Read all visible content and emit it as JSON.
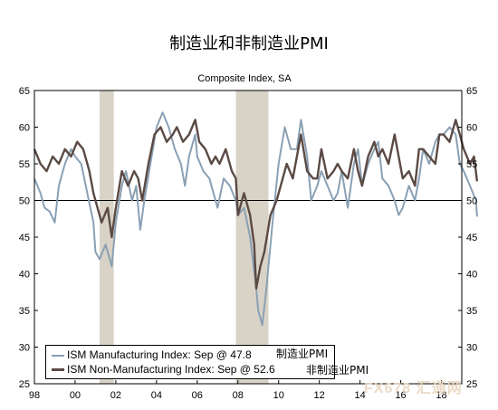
{
  "title": "制造业和非制造业PMI",
  "chart_data": {
    "type": "line",
    "subtitle": "Composite Index, SA",
    "ylim": [
      25,
      65
    ],
    "yticks": [
      25,
      30,
      35,
      40,
      45,
      50,
      55,
      60,
      65
    ],
    "xlim": [
      1998.0,
      2019.0
    ],
    "xticks": [
      {
        "x": 1998,
        "label": "98"
      },
      {
        "x": 2000,
        "label": "00"
      },
      {
        "x": 2002,
        "label": "02"
      },
      {
        "x": 2004,
        "label": "04"
      },
      {
        "x": 2006,
        "label": "06"
      },
      {
        "x": 2008,
        "label": "08"
      },
      {
        "x": 2010,
        "label": "10"
      },
      {
        "x": 2012,
        "label": "12"
      },
      {
        "x": 2014,
        "label": "14"
      },
      {
        "x": 2016,
        "label": "16"
      },
      {
        "x": 2018,
        "label": "18"
      }
    ],
    "reference_line": 50,
    "recessions": [
      [
        2001.2,
        2001.9
      ],
      [
        2007.9,
        2009.5
      ]
    ],
    "series": [
      {
        "name": "ISM Manufacturing Index: Sep @ 47.8",
        "name_extra": "制造业PMI",
        "color": "#8aa0b4",
        "points": [
          [
            1998.0,
            53
          ],
          [
            1998.3,
            51
          ],
          [
            1998.5,
            49
          ],
          [
            1998.75,
            48.5
          ],
          [
            1999.0,
            47
          ],
          [
            1999.2,
            52
          ],
          [
            1999.5,
            55
          ],
          [
            1999.8,
            57
          ],
          [
            2000.0,
            56
          ],
          [
            2000.3,
            55
          ],
          [
            2000.6,
            51
          ],
          [
            2000.9,
            47
          ],
          [
            2001.0,
            43
          ],
          [
            2001.2,
            42
          ],
          [
            2001.5,
            44
          ],
          [
            2001.8,
            41
          ],
          [
            2002.0,
            47
          ],
          [
            2002.3,
            52
          ],
          [
            2002.5,
            54
          ],
          [
            2002.8,
            50
          ],
          [
            2003.0,
            52
          ],
          [
            2003.2,
            46
          ],
          [
            2003.4,
            50
          ],
          [
            2003.7,
            55
          ],
          [
            2004.0,
            60
          ],
          [
            2004.3,
            62
          ],
          [
            2004.6,
            60
          ],
          [
            2004.9,
            57
          ],
          [
            2005.2,
            55
          ],
          [
            2005.4,
            52
          ],
          [
            2005.6,
            56
          ],
          [
            2005.9,
            59
          ],
          [
            2006.0,
            56
          ],
          [
            2006.3,
            54
          ],
          [
            2006.6,
            53
          ],
          [
            2006.9,
            50
          ],
          [
            2007.0,
            49
          ],
          [
            2007.3,
            53
          ],
          [
            2007.6,
            52
          ],
          [
            2007.9,
            50
          ],
          [
            2008.0,
            48
          ],
          [
            2008.3,
            49
          ],
          [
            2008.6,
            45
          ],
          [
            2008.9,
            38
          ],
          [
            2009.0,
            35
          ],
          [
            2009.2,
            33
          ],
          [
            2009.4,
            38
          ],
          [
            2009.7,
            47
          ],
          [
            2010.0,
            55
          ],
          [
            2010.3,
            60
          ],
          [
            2010.6,
            57
          ],
          [
            2010.9,
            57
          ],
          [
            2011.1,
            61
          ],
          [
            2011.4,
            56
          ],
          [
            2011.6,
            50
          ],
          [
            2011.9,
            52
          ],
          [
            2012.1,
            54
          ],
          [
            2012.4,
            52
          ],
          [
            2012.7,
            50
          ],
          [
            2012.9,
            51
          ],
          [
            2013.1,
            54
          ],
          [
            2013.4,
            49
          ],
          [
            2013.7,
            55
          ],
          [
            2013.9,
            57
          ],
          [
            2014.1,
            52
          ],
          [
            2014.4,
            55
          ],
          [
            2014.7,
            57
          ],
          [
            2014.9,
            58
          ],
          [
            2015.1,
            53
          ],
          [
            2015.4,
            52
          ],
          [
            2015.7,
            50
          ],
          [
            2015.9,
            48
          ],
          [
            2016.1,
            49
          ],
          [
            2016.4,
            52
          ],
          [
            2016.7,
            50
          ],
          [
            2016.9,
            53
          ],
          [
            2017.1,
            57
          ],
          [
            2017.4,
            55
          ],
          [
            2017.7,
            58
          ],
          [
            2017.9,
            59
          ],
          [
            2018.1,
            59
          ],
          [
            2018.4,
            60
          ],
          [
            2018.7,
            59
          ],
          [
            2018.9,
            55
          ],
          [
            2019.1,
            54
          ],
          [
            2019.4,
            52
          ],
          [
            2019.7,
            50
          ],
          [
            2019.75,
            47.8
          ]
        ]
      },
      {
        "name": "ISM Non-Manufacturing Index: Sep @ 52.6",
        "name_extra": "非制造业PMI",
        "color": "#5b4a44",
        "points": [
          [
            1998.0,
            57
          ],
          [
            1998.3,
            55
          ],
          [
            1998.6,
            54
          ],
          [
            1998.9,
            56
          ],
          [
            1999.2,
            55
          ],
          [
            1999.5,
            57
          ],
          [
            1999.8,
            56
          ],
          [
            2000.1,
            58
          ],
          [
            2000.4,
            57
          ],
          [
            2000.7,
            54
          ],
          [
            2000.9,
            51
          ],
          [
            2001.1,
            49
          ],
          [
            2001.3,
            47
          ],
          [
            2001.6,
            49
          ],
          [
            2001.8,
            45
          ],
          [
            2002.0,
            49
          ],
          [
            2002.3,
            54
          ],
          [
            2002.6,
            52
          ],
          [
            2002.9,
            54
          ],
          [
            2003.1,
            53
          ],
          [
            2003.3,
            50
          ],
          [
            2003.6,
            55
          ],
          [
            2003.9,
            59
          ],
          [
            2004.2,
            60
          ],
          [
            2004.5,
            58
          ],
          [
            2004.8,
            59
          ],
          [
            2005.0,
            60
          ],
          [
            2005.3,
            58
          ],
          [
            2005.6,
            59
          ],
          [
            2005.9,
            61
          ],
          [
            2006.1,
            58
          ],
          [
            2006.4,
            57
          ],
          [
            2006.7,
            55
          ],
          [
            2006.9,
            56
          ],
          [
            2007.1,
            55
          ],
          [
            2007.4,
            57
          ],
          [
            2007.7,
            54
          ],
          [
            2007.9,
            53
          ],
          [
            2008.0,
            48
          ],
          [
            2008.3,
            51
          ],
          [
            2008.6,
            48
          ],
          [
            2008.8,
            44
          ],
          [
            2008.9,
            38
          ],
          [
            2009.1,
            41
          ],
          [
            2009.3,
            43
          ],
          [
            2009.6,
            48
          ],
          [
            2009.9,
            50
          ],
          [
            2010.1,
            52
          ],
          [
            2010.4,
            55
          ],
          [
            2010.7,
            53
          ],
          [
            2010.9,
            56
          ],
          [
            2011.1,
            59
          ],
          [
            2011.4,
            54
          ],
          [
            2011.7,
            53
          ],
          [
            2011.9,
            53
          ],
          [
            2012.1,
            57
          ],
          [
            2012.4,
            53
          ],
          [
            2012.7,
            54
          ],
          [
            2012.9,
            55
          ],
          [
            2013.1,
            54
          ],
          [
            2013.4,
            53
          ],
          [
            2013.7,
            57
          ],
          [
            2013.9,
            54
          ],
          [
            2014.1,
            52
          ],
          [
            2014.4,
            56
          ],
          [
            2014.7,
            58
          ],
          [
            2014.9,
            56
          ],
          [
            2015.1,
            57
          ],
          [
            2015.4,
            55
          ],
          [
            2015.7,
            59
          ],
          [
            2015.9,
            56
          ],
          [
            2016.1,
            53
          ],
          [
            2016.4,
            54
          ],
          [
            2016.7,
            52
          ],
          [
            2016.9,
            57
          ],
          [
            2017.1,
            57
          ],
          [
            2017.4,
            56
          ],
          [
            2017.7,
            55
          ],
          [
            2017.9,
            59
          ],
          [
            2018.1,
            59
          ],
          [
            2018.4,
            58
          ],
          [
            2018.7,
            61
          ],
          [
            2018.9,
            59
          ],
          [
            2019.1,
            57
          ],
          [
            2019.4,
            55
          ],
          [
            2019.6,
            56
          ],
          [
            2019.75,
            52.6
          ]
        ]
      }
    ]
  },
  "watermark": "FX678 汇通网"
}
